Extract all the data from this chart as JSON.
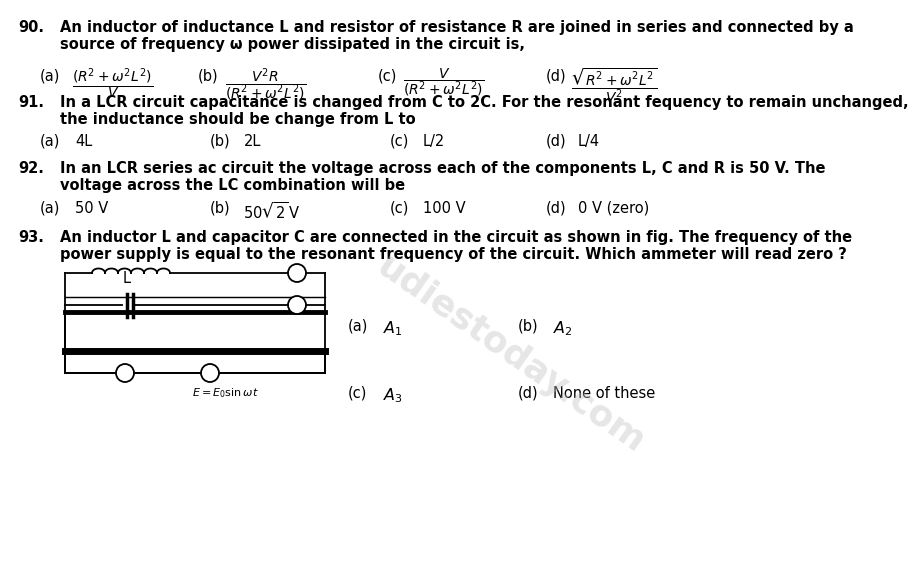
{
  "bg_color": "#ffffff",
  "text_color": "#000000",
  "watermark_color": "#c0c0c0",
  "fs": 10.5,
  "fs_opt": 10.5,
  "fs_math": 9.5,
  "q90_line1": "An inductor of inductance L and resistor of resistance R are joined in series and connected by a",
  "q90_line2": "source of frequency ω power dissipated in the circuit is,",
  "q91_line1": "In a LCR circuit capacitance is changed from C to 2C. For the resonant fequency to remain unchanged,",
  "q91_line2": "the inductance should be change from L to",
  "q92_line1": "In an LCR series ac circuit the voltage across each of the components L, C and R is 50 V. The",
  "q92_line2": "voltage across the LC combination will be",
  "q93_line1": "An inductor L and capacitor C are connected in the circuit as shown in fig. The frequency of the",
  "q93_line2": "power supply is equal to the resonant frequency of the circuit. Which ammeter will read zero ?"
}
